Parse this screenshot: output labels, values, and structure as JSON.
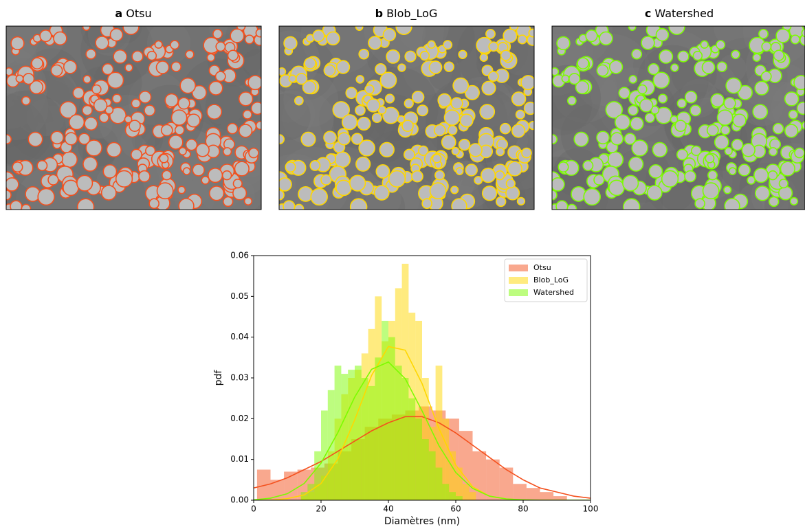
{
  "panels": [
    {
      "label": "a",
      "title": "Otsu"
    },
    {
      "label": "b",
      "title": "Blob_LoG"
    },
    {
      "label": "c",
      "title": "Watershed"
    }
  ],
  "chart_data": {
    "type": "histogram",
    "xlabel": "Diamètres (nm)",
    "ylabel": "pdf",
    "xlim": [
      0,
      100
    ],
    "xticks": [
      0,
      20,
      40,
      60,
      80,
      100
    ],
    "ylim": [
      0,
      0.06
    ],
    "yticks": [
      {
        "value": 0,
        "label": "0.00"
      },
      {
        "value": 0.01,
        "label": "0.01"
      },
      {
        "value": 0.02,
        "label": "0.02"
      },
      {
        "value": 0.03,
        "label": "0.03"
      },
      {
        "value": 0.04,
        "label": "0.04"
      },
      {
        "value": 0.05,
        "label": "0.05"
      },
      {
        "value": 0.06,
        "label": "0.06"
      }
    ],
    "legend": "upper right",
    "fit_x": [
      0,
      5,
      10,
      15,
      20,
      25,
      30,
      35,
      40,
      45,
      50,
      55,
      60,
      65,
      70,
      75,
      80,
      85,
      90,
      95,
      100
    ],
    "series": [
      {
        "name": "Otsu",
        "color": "#f4511e",
        "bins": [
          1,
          5,
          9,
          13,
          17,
          21,
          25,
          29,
          33,
          37,
          41,
          45,
          49,
          53,
          57,
          61,
          65,
          69,
          73,
          77,
          81,
          85,
          89,
          93
        ],
        "values": [
          0.0075,
          0.005,
          0.007,
          0.0075,
          0.008,
          0.009,
          0.012,
          0.015,
          0.018,
          0.02,
          0.021,
          0.022,
          0.023,
          0.022,
          0.02,
          0.017,
          0.012,
          0.01,
          0.008,
          0.004,
          0.003,
          0.002,
          0.001
        ],
        "fit": [
          0.003,
          0.004,
          0.0055,
          0.0075,
          0.0095,
          0.012,
          0.0145,
          0.017,
          0.019,
          0.0205,
          0.0205,
          0.019,
          0.0165,
          0.0135,
          0.0105,
          0.0075,
          0.005,
          0.003,
          0.002,
          0.001,
          0.0005
        ]
      },
      {
        "name": "Blob_LoG",
        "color": "#ffd700",
        "bins": [
          14,
          16,
          18,
          20,
          22,
          24,
          26,
          28,
          30,
          32,
          34,
          36,
          38,
          40,
          42,
          44,
          46,
          48,
          50,
          52,
          54,
          56,
          58,
          60,
          62,
          64,
          66
        ],
        "values": [
          0.001,
          0.002,
          0.004,
          0.006,
          0.012,
          0.02,
          0.026,
          0.03,
          0.032,
          0.036,
          0.042,
          0.05,
          0.039,
          0.044,
          0.052,
          0.058,
          0.046,
          0.044,
          0.03,
          0.018,
          0.033,
          0.02,
          0.012,
          0.008,
          0.004,
          0.002
        ],
        "fit": [
          0,
          0,
          0.0004,
          0.0013,
          0.0041,
          0.0101,
          0.0197,
          0.0306,
          0.0377,
          0.0368,
          0.0286,
          0.0176,
          0.0086,
          0.0033,
          0.001,
          0.0003,
          0.0001,
          0,
          0,
          0,
          0
        ]
      },
      {
        "name": "Watershed",
        "color": "#7cfc00",
        "bins": [
          14,
          16,
          18,
          20,
          22,
          24,
          26,
          28,
          30,
          32,
          34,
          36,
          38,
          40,
          42,
          44,
          46,
          48,
          50,
          52,
          54,
          56,
          58,
          60,
          62
        ],
        "values": [
          0.002,
          0.004,
          0.012,
          0.022,
          0.027,
          0.033,
          0.031,
          0.032,
          0.033,
          0.03,
          0.028,
          0.035,
          0.044,
          0.04,
          0.033,
          0.03,
          0.025,
          0.02,
          0.015,
          0.012,
          0.008,
          0.004,
          0.002,
          0.001
        ],
        "fit": [
          0.0001,
          0.0005,
          0.0016,
          0.0041,
          0.0091,
          0.0166,
          0.0253,
          0.0321,
          0.0339,
          0.0298,
          0.0219,
          0.0134,
          0.0068,
          0.0029,
          0.001,
          0.0003,
          0.0001,
          0,
          0,
          0,
          0
        ]
      }
    ]
  }
}
